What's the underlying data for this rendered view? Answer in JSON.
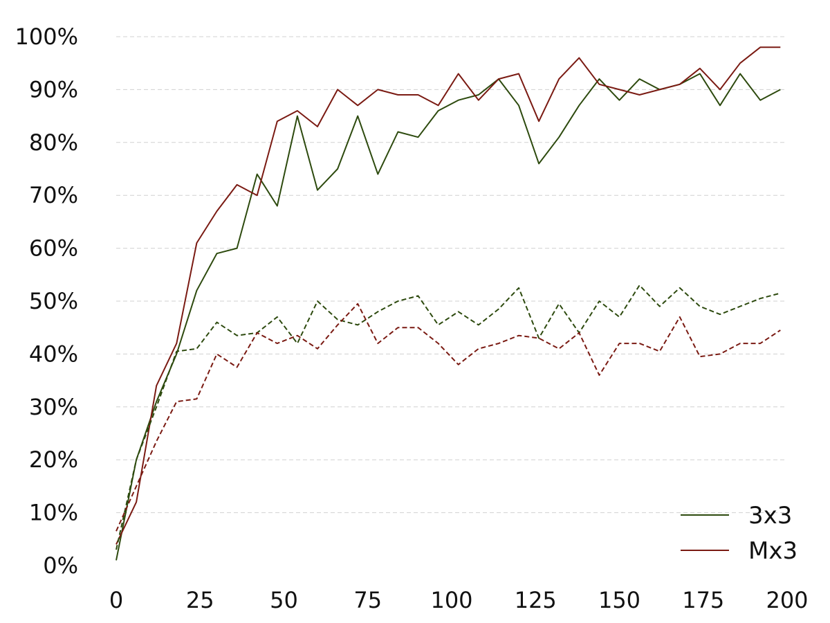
{
  "chart_data": {
    "type": "line",
    "title": "",
    "xlabel": "",
    "ylabel": "",
    "xlim": [
      0,
      200
    ],
    "ylim": [
      0,
      100
    ],
    "xticks": [
      0,
      25,
      50,
      75,
      100,
      125,
      150,
      175,
      200
    ],
    "xtick_labels": [
      "0",
      "25",
      "50",
      "75",
      "100",
      "125",
      "150",
      "175",
      "200"
    ],
    "yticks": [
      0,
      10,
      20,
      30,
      40,
      50,
      60,
      70,
      80,
      90,
      100
    ],
    "ytick_labels": [
      "0%",
      "10%",
      "20%",
      "30%",
      "40%",
      "50%",
      "60%",
      "70%",
      "80%",
      "90%",
      "100%"
    ],
    "grid": "horizontal dashed",
    "legend_position": "bottom-right",
    "x": [
      0,
      6,
      12,
      18,
      24,
      30,
      36,
      42,
      48,
      54,
      60,
      66,
      72,
      78,
      84,
      90,
      96,
      102,
      108,
      114,
      120,
      126,
      132,
      138,
      144,
      150,
      156,
      162,
      168,
      174,
      180,
      186,
      192,
      198
    ],
    "series": [
      {
        "name": "3x3",
        "color": "#2d4a0e",
        "style": "solid",
        "values": [
          1,
          20,
          31,
          40,
          52,
          59,
          60,
          74,
          68,
          85,
          71,
          75,
          85,
          74,
          82,
          81,
          86,
          88,
          89,
          92,
          87,
          76,
          81,
          87,
          92,
          88,
          92,
          90,
          91,
          93,
          87,
          93,
          88,
          90
        ]
      },
      {
        "name": "Mx3",
        "color": "#7a1a12",
        "style": "solid",
        "values": [
          4,
          12,
          34,
          42,
          61,
          67,
          72,
          70,
          84,
          86,
          83,
          90,
          87,
          90,
          89,
          89,
          87,
          93,
          88,
          92,
          93,
          84,
          92,
          96,
          91,
          90,
          89,
          90,
          91,
          94,
          90,
          95,
          98,
          98
        ]
      },
      {
        "color": "#2d4a0e",
        "style": "dashed",
        "values": [
          3,
          20,
          30,
          40.5,
          41,
          46,
          43.5,
          44,
          47,
          42,
          50,
          46.5,
          45.5,
          48,
          50,
          51,
          45.5,
          48,
          45.5,
          48.5,
          52.5,
          43,
          49.5,
          44,
          50,
          47,
          53,
          49,
          52.5,
          49,
          47.5,
          49,
          50.5,
          51.5
        ]
      },
      {
        "color": "#7a1a12",
        "style": "dashed",
        "values": [
          6.5,
          15,
          23.5,
          31,
          31.5,
          40,
          37.5,
          44,
          42,
          43.5,
          41,
          45.5,
          49.5,
          42,
          45,
          45,
          42,
          38,
          41,
          42,
          43.5,
          43,
          41,
          44,
          36,
          42,
          42,
          40.5,
          47,
          39.5,
          40,
          42,
          42,
          44.5
        ]
      }
    ]
  }
}
